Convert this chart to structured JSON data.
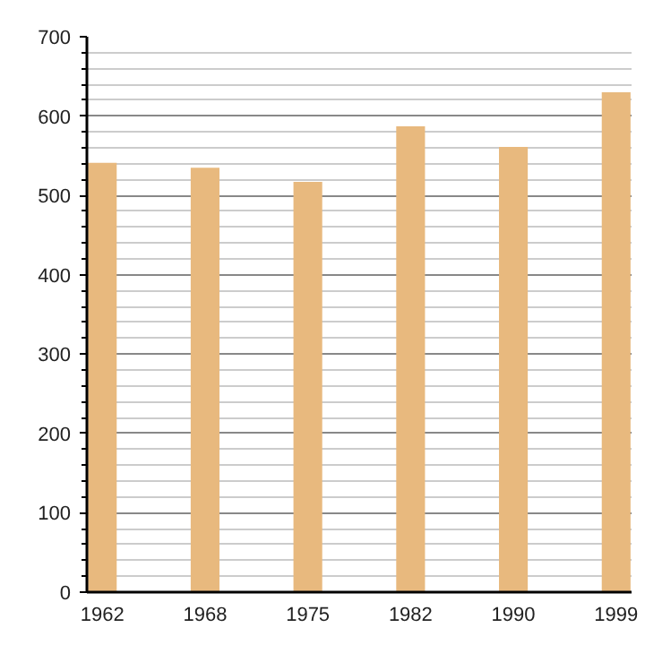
{
  "chart_data": {
    "type": "bar",
    "categories": [
      "1962",
      "1968",
      "1975",
      "1982",
      "1990",
      "1999"
    ],
    "values": [
      541,
      535,
      517,
      587,
      561,
      630
    ],
    "color": "#e8b97e",
    "ylim": [
      0,
      700
    ],
    "yticks": [
      0,
      100,
      200,
      300,
      400,
      500,
      600,
      700
    ],
    "grid": "y"
  }
}
